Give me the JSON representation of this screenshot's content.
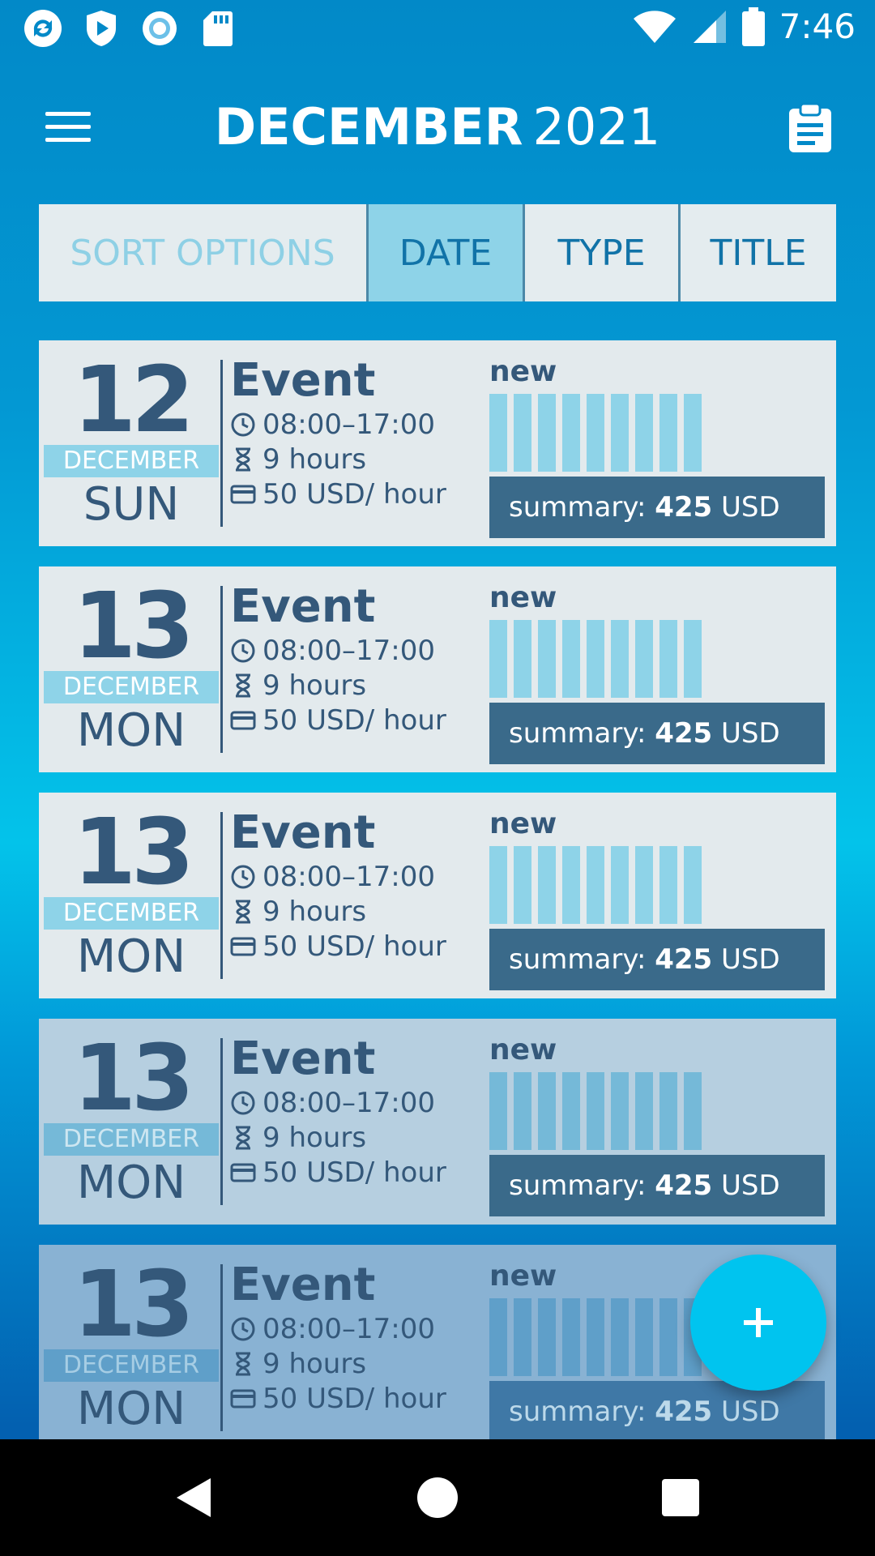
{
  "status_bar": {
    "time": "7:46",
    "left_icons": [
      "refresh-app-icon",
      "shield-play-icon",
      "record-icon",
      "sd-card-icon"
    ],
    "right_icons": [
      "wifi-icon",
      "signal-icon",
      "battery-icon"
    ]
  },
  "header": {
    "month": "DECEMBER",
    "year": "2021"
  },
  "sort": {
    "label": "SORT OPTIONS",
    "options": [
      "DATE",
      "TYPE",
      "TITLE"
    ],
    "selected": "DATE"
  },
  "events": [
    {
      "day": "12",
      "month": "DECEMBER",
      "weekday": "SUN",
      "title": "Event",
      "time": "08:00–17:00",
      "duration": "9 hours",
      "rate": "50 USD/ hour",
      "status": "new",
      "summary_label": "summary:",
      "summary_value": "425",
      "summary_currency": "USD"
    },
    {
      "day": "13",
      "month": "DECEMBER",
      "weekday": "MON",
      "title": "Event",
      "time": "08:00–17:00",
      "duration": "9 hours",
      "rate": "50 USD/ hour",
      "status": "new",
      "summary_label": "summary:",
      "summary_value": "425",
      "summary_currency": "USD"
    },
    {
      "day": "13",
      "month": "DECEMBER",
      "weekday": "MON",
      "title": "Event",
      "time": "08:00–17:00",
      "duration": "9 hours",
      "rate": "50 USD/ hour",
      "status": "new",
      "summary_label": "summary:",
      "summary_value": "425",
      "summary_currency": "USD"
    },
    {
      "day": "13",
      "month": "DECEMBER",
      "weekday": "MON",
      "title": "Event",
      "time": "08:00–17:00",
      "duration": "9 hours",
      "rate": "50 USD/ hour",
      "status": "new",
      "summary_label": "summary:",
      "summary_value": "425",
      "summary_currency": "USD"
    },
    {
      "day": "13",
      "month": "DECEMBER",
      "weekday": "MON",
      "title": "Event",
      "time": "08:00–17:00",
      "duration": "9 hours",
      "rate": "50 USD/ hour",
      "status": "new",
      "summary_label": "summary:",
      "summary_value": "425",
      "summary_currency": "USD"
    }
  ],
  "fab": {
    "icon": "plus-icon"
  },
  "nav": {
    "icons": [
      "back-icon",
      "home-icon",
      "recents-icon"
    ]
  },
  "colors": {
    "accent": "#00c4ef",
    "card": "#e3eaed",
    "dark_text": "#34587a",
    "bar": "#8ed3e8"
  }
}
